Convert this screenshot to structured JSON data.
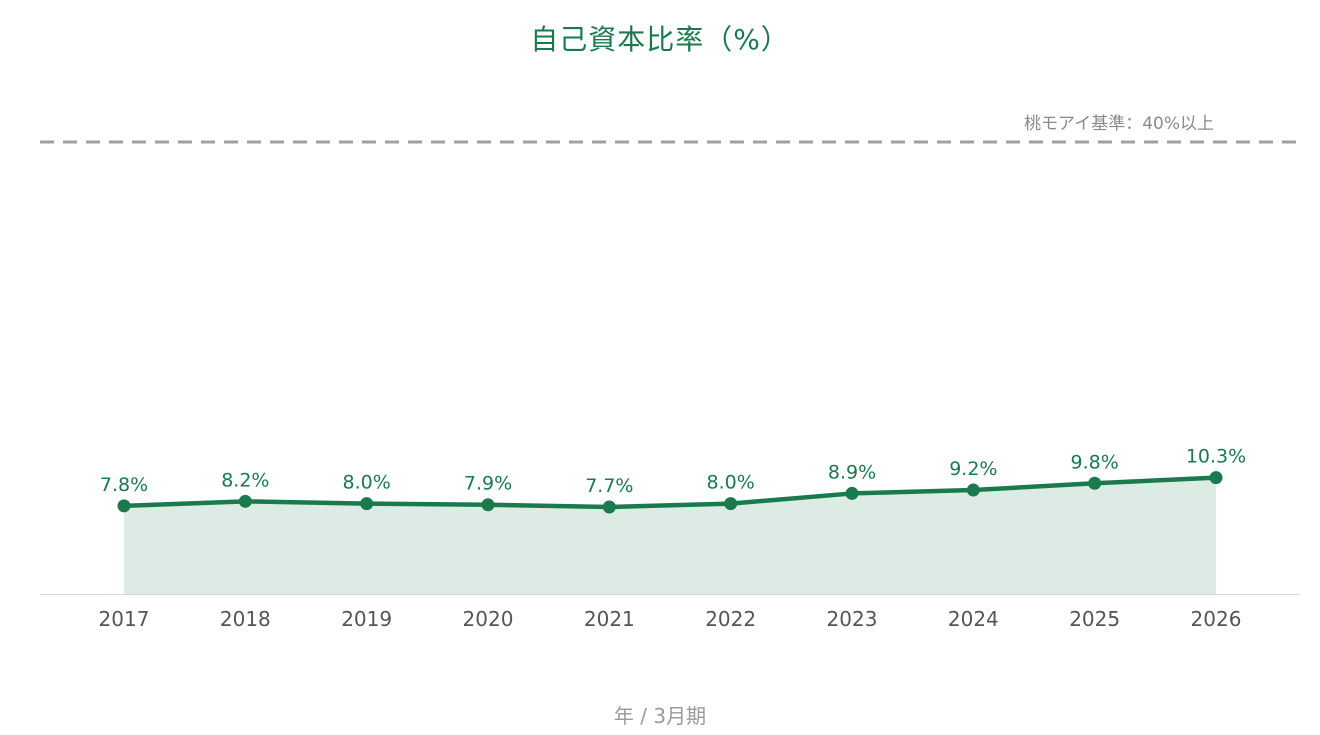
{
  "chart_data": {
    "type": "area",
    "title": "自己資本比率（%）",
    "xlabel": "年 / 3月期",
    "ylabel": "",
    "categories": [
      "2017",
      "2018",
      "2019",
      "2020",
      "2021",
      "2022",
      "2023",
      "2024",
      "2025",
      "2026"
    ],
    "series": [
      {
        "values": [
          7.8,
          8.2,
          8.0,
          7.9,
          7.7,
          8.0,
          8.9,
          9.2,
          9.8,
          10.3
        ],
        "data_labels": [
          "7.8%",
          "8.2%",
          "8.0%",
          "7.9%",
          "7.7%",
          "8.0%",
          "8.9%",
          "9.2%",
          "9.8%",
          "10.3%"
        ],
        "color": "#1a7a4e",
        "fill_color": "#dcebe3"
      }
    ],
    "reference_line": {
      "value": 40,
      "label": "桃モアイ基準：40%以上",
      "color": "#a0a0a0",
      "style": "dashed"
    },
    "ylim": [
      0,
      40
    ],
    "grid": false,
    "legend": "none"
  }
}
